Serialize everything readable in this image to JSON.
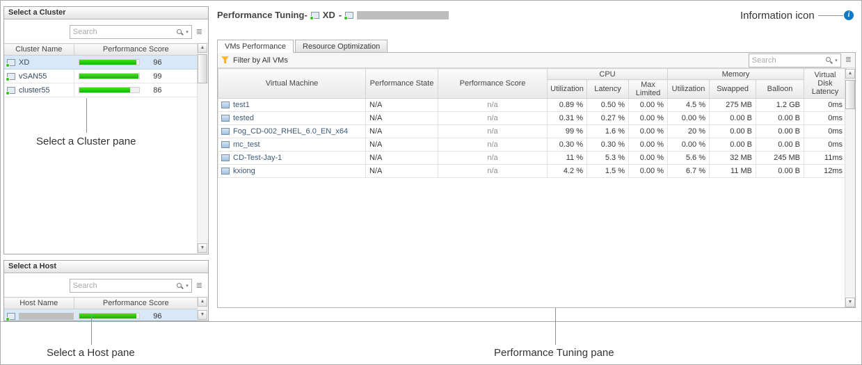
{
  "colors": {
    "bar_green": "#22cc0a",
    "info_blue": "#1279c7",
    "selected_row_bg": "#d9e8f9"
  },
  "icons": {
    "info_glyph": "i",
    "scroll_up": "▲",
    "scroll_down": "▼",
    "search_caret": "▾",
    "customizer": "≣"
  },
  "annotations": {
    "cluster_pane": "Select a Cluster pane",
    "host_pane": "Select a Host pane",
    "tuning_pane": "Performance Tuning pane",
    "info_icon": "Information icon"
  },
  "cluster_pane": {
    "title": "Select a Cluster",
    "search_placeholder": "Search",
    "columns": {
      "name": "Cluster Name",
      "score": "Performance Score"
    },
    "rows": [
      {
        "name": "XD",
        "score": 96,
        "selected": true
      },
      {
        "name": "vSAN55",
        "score": 99,
        "selected": false
      },
      {
        "name": "cluster55",
        "score": 86,
        "selected": false
      }
    ]
  },
  "host_pane": {
    "title": "Select a Host",
    "search_placeholder": "Search",
    "columns": {
      "name": "Host Name",
      "score": "Performance Score"
    },
    "rows": [
      {
        "name": "",
        "redacted": true,
        "score": 96,
        "selected": true
      }
    ]
  },
  "main": {
    "title": "Performance Tuning-",
    "cluster_name": "XD",
    "separator": "-",
    "tabs": [
      {
        "label": "VMs Performance",
        "active": true
      },
      {
        "label": "Resource Optimization",
        "active": false
      }
    ],
    "filter_label": "Filter by All VMs",
    "search_placeholder": "Search",
    "table": {
      "headers": {
        "vm": "Virtual Machine",
        "state": "Performance State",
        "score": "Performance Score",
        "cpu_group": "CPU",
        "memory_group": "Memory",
        "cpu_utilization": "Utilization",
        "cpu_latency": "Latency",
        "cpu_max_limited": "Max Limited",
        "mem_utilization": "Utilization",
        "mem_swapped": "Swapped",
        "mem_balloon": "Balloon",
        "vdisk_latency": "Virtual Disk Latency"
      },
      "rows": [
        {
          "vm": "test1",
          "state": "N/A",
          "score": "n/a",
          "cpu_util": "0.89 %",
          "cpu_lat": "0.50 %",
          "cpu_max": "0.00 %",
          "mem_util": "4.5 %",
          "swapped": "275 MB",
          "balloon": "1.2 GB",
          "vdisk": "0ms"
        },
        {
          "vm": "tested",
          "state": "N/A",
          "score": "n/a",
          "cpu_util": "0.31 %",
          "cpu_lat": "0.27 %",
          "cpu_max": "0.00 %",
          "mem_util": "0.00 %",
          "swapped": "0.00 B",
          "balloon": "0.00 B",
          "vdisk": "0ms"
        },
        {
          "vm": "Fog_CD-002_RHEL_6.0_EN_x64",
          "state": "N/A",
          "score": "n/a",
          "cpu_util": "99 %",
          "cpu_lat": "1.6 %",
          "cpu_max": "0.00 %",
          "mem_util": "20 %",
          "swapped": "0.00 B",
          "balloon": "0.00 B",
          "vdisk": "0ms"
        },
        {
          "vm": "mc_test",
          "state": "N/A",
          "score": "n/a",
          "cpu_util": "0.30 %",
          "cpu_lat": "0.30 %",
          "cpu_max": "0.00 %",
          "mem_util": "0.00 %",
          "swapped": "0.00 B",
          "balloon": "0.00 B",
          "vdisk": "0ms"
        },
        {
          "vm": "CD-Test-Jay-1",
          "state": "N/A",
          "score": "n/a",
          "cpu_util": "11 %",
          "cpu_lat": "5.3 %",
          "cpu_max": "0.00 %",
          "mem_util": "5.6 %",
          "swapped": "32 MB",
          "balloon": "245 MB",
          "vdisk": "11ms"
        },
        {
          "vm": "kxiong",
          "state": "N/A",
          "score": "n/a",
          "cpu_util": "4.2 %",
          "cpu_lat": "1.5 %",
          "cpu_max": "0.00 %",
          "mem_util": "6.7 %",
          "swapped": "11 MB",
          "balloon": "0.00 B",
          "vdisk": "12ms"
        }
      ]
    }
  }
}
